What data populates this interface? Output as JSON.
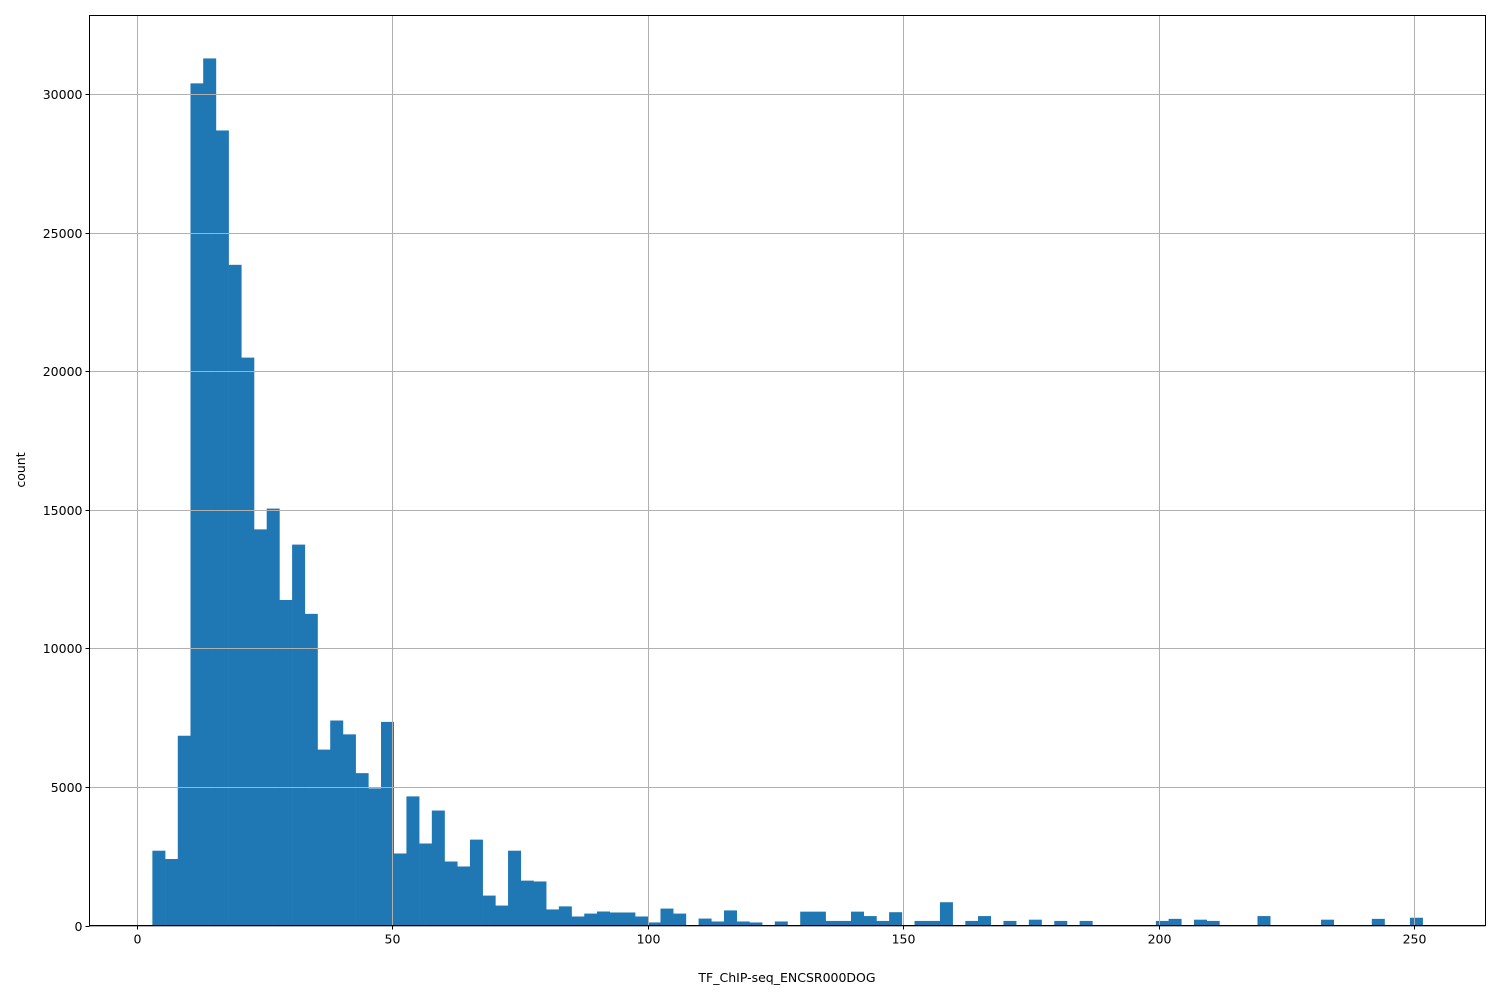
{
  "chart_data": {
    "type": "bar",
    "subtype": "histogram",
    "title": "",
    "xlabel": "TF_ChIP-seq_ENCSR000DOG",
    "ylabel": "count",
    "xlim": [
      -9.2,
      263.9
    ],
    "ylim": [
      0,
      32850
    ],
    "grid": true,
    "bar_color": "#1f77b4",
    "grid_color": "#b0b0b0",
    "bin_start": 3.1,
    "bin_width": 2.485,
    "x_ticks": [
      0,
      50,
      100,
      150,
      200,
      250
    ],
    "x_tick_labels": [
      "0",
      "50",
      "100",
      "150",
      "200",
      "250"
    ],
    "y_ticks": [
      0,
      5000,
      10000,
      15000,
      20000,
      25000,
      30000
    ],
    "y_tick_labels": [
      "0",
      "5000",
      "10000",
      "15000",
      "20000",
      "25000",
      "30000"
    ],
    "values": [
      2700,
      2400,
      6850,
      30400,
      31300,
      28700,
      23850,
      20500,
      14300,
      15050,
      11750,
      13750,
      11250,
      6350,
      7400,
      6900,
      5500,
      4950,
      7350,
      2600,
      4660,
      2960,
      4150,
      2310,
      2130,
      3100,
      1080,
      720,
      2700,
      1620,
      1590,
      580,
      690,
      325,
      430,
      505,
      470,
      470,
      325,
      110,
      610,
      430,
      0,
      250,
      145,
      545,
      145,
      110,
      0,
      145,
      0,
      500,
      500,
      165,
      165,
      500,
      340,
      165,
      480,
      0,
      165,
      165,
      840,
      0,
      165,
      340,
      0,
      165,
      0,
      210,
      0,
      165,
      0,
      165,
      0,
      0,
      0,
      0,
      0,
      165,
      240,
      0,
      210,
      165,
      0,
      0,
      0,
      340,
      0,
      0,
      0,
      0,
      210,
      0,
      0,
      0,
      240,
      0,
      0,
      280
    ]
  }
}
